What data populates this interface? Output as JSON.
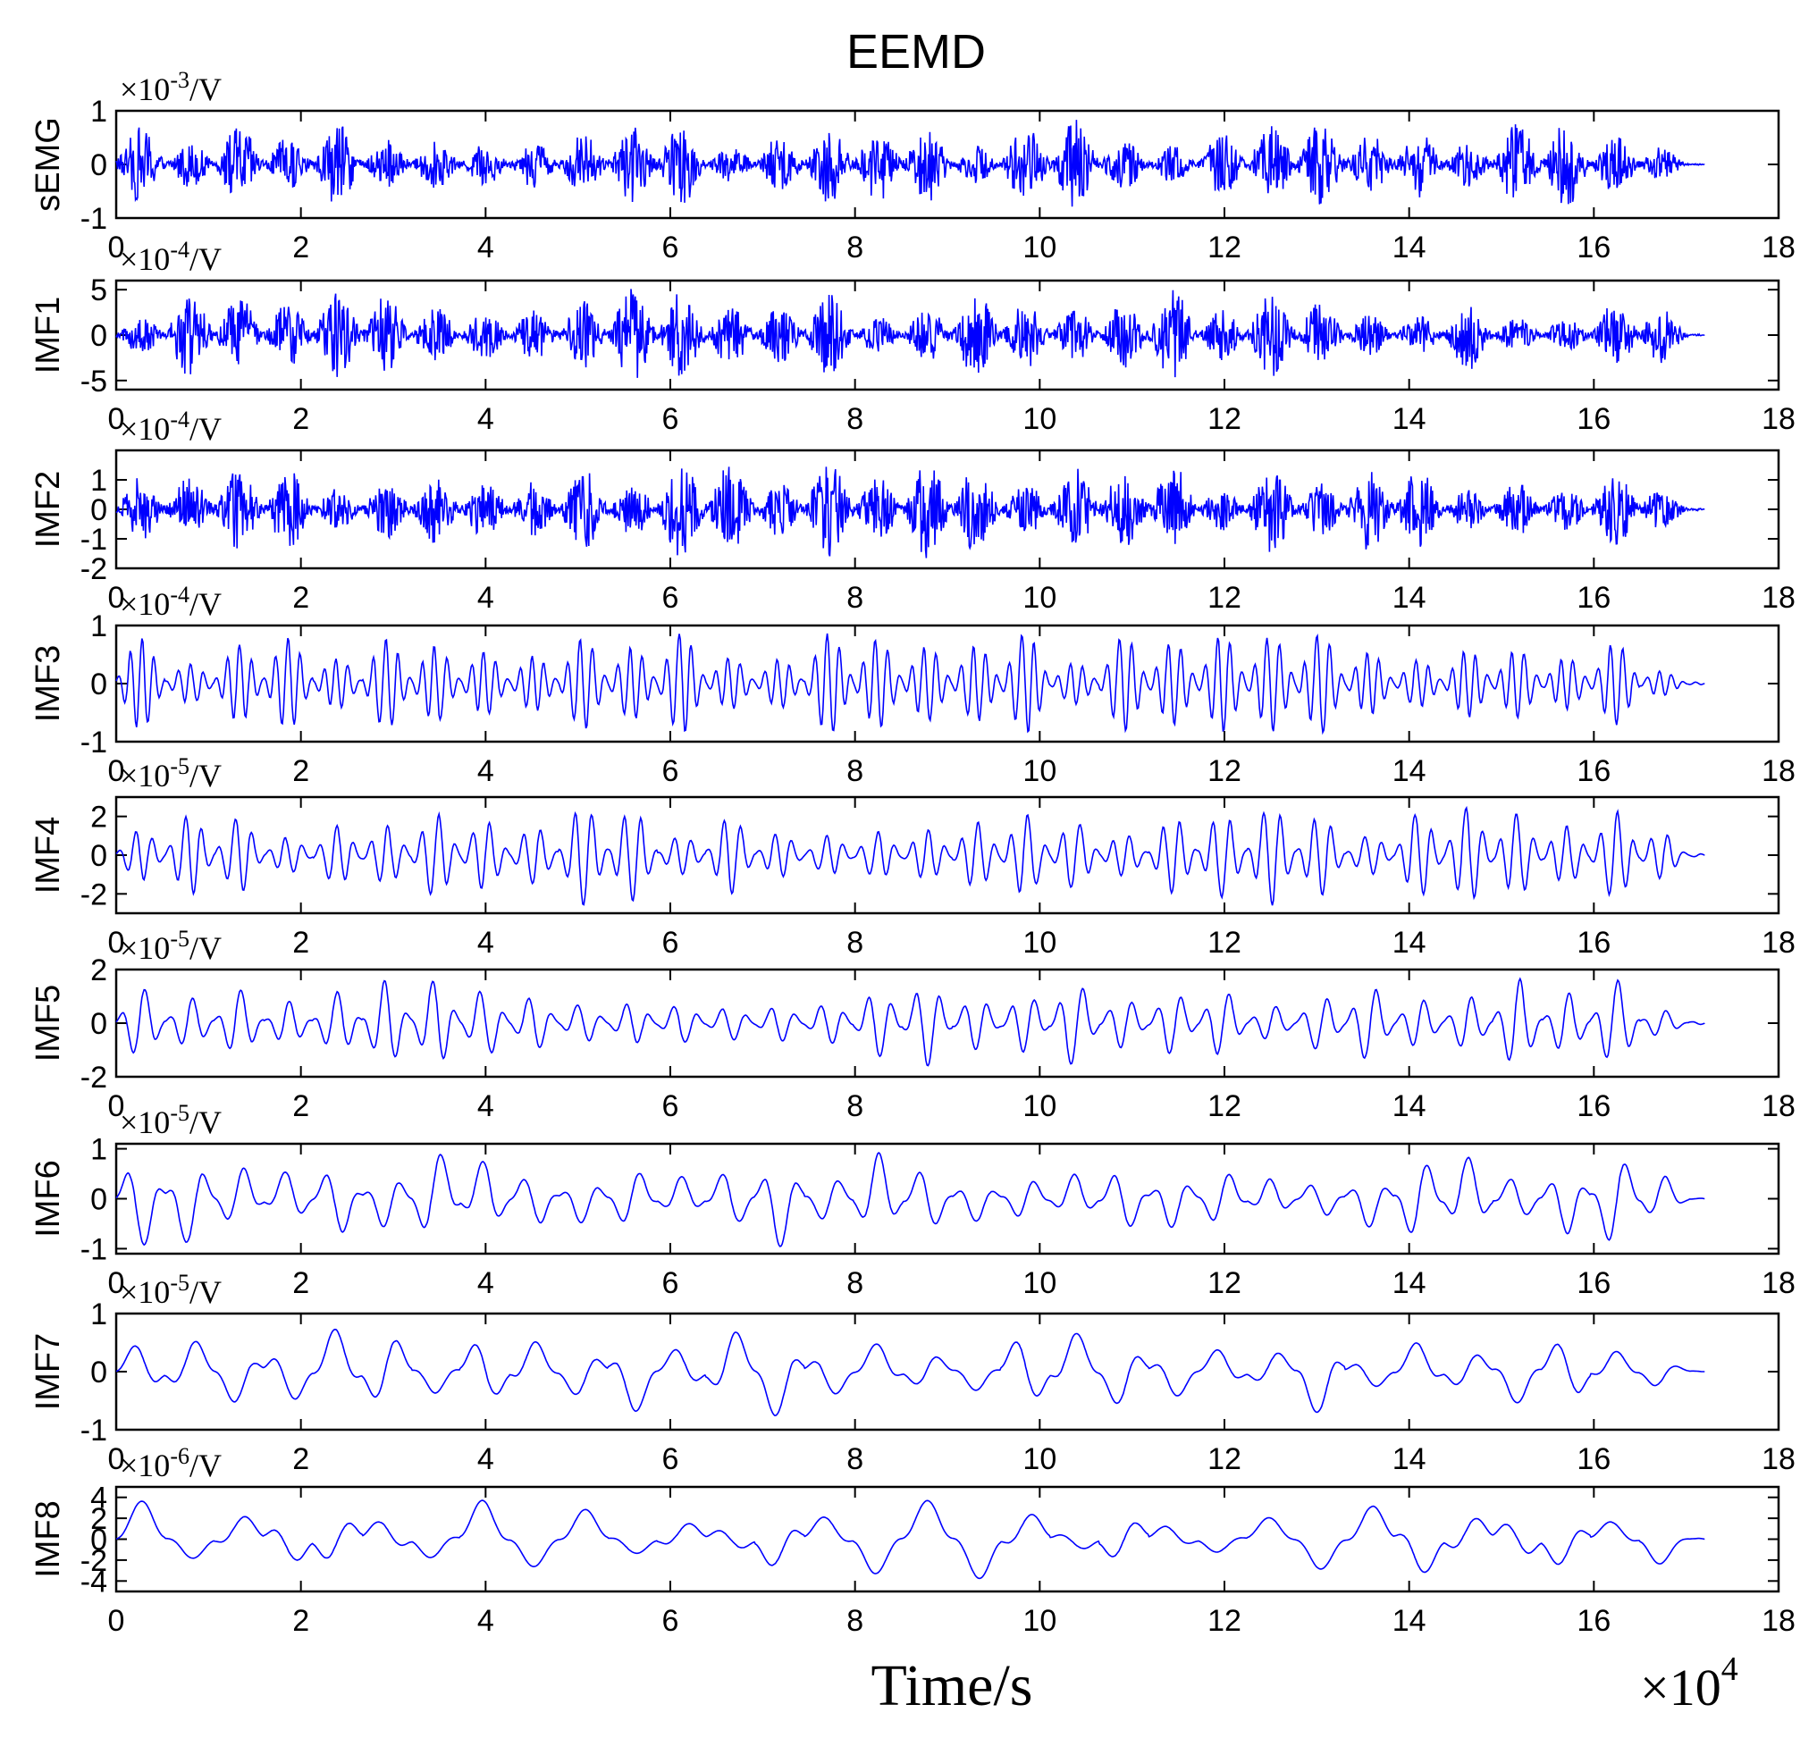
{
  "title": "EEMD",
  "xlabel": "Time/s",
  "x_multiplier_label": "×10",
  "x_multiplier_exp": "4",
  "x_ticks": [
    "0",
    "2",
    "4",
    "6",
    "8",
    "10",
    "12",
    "14",
    "16",
    "18"
  ],
  "colors": {
    "signal": "#0000ff",
    "axes": "#000000",
    "background": "#ffffff"
  },
  "chart_data": {
    "type": "line",
    "xlim": [
      0,
      18
    ],
    "x_scale": "×10^4",
    "signal_end_x": 17.2,
    "grid": false,
    "panels": [
      {
        "name": "sEMG",
        "unit_prefix": "×10",
        "unit_exp": "-3",
        "unit_suffix": "/V",
        "ylim": [
          -1,
          1
        ],
        "yticks": [
          -1,
          0,
          1
        ],
        "ytick_labels": [
          "-1",
          "0",
          "1"
        ]
      },
      {
        "name": "IMF1",
        "unit_prefix": "×10",
        "unit_exp": "-4",
        "unit_suffix": "/V",
        "ylim": [
          -6,
          6
        ],
        "yticks": [
          -5,
          0,
          5
        ],
        "ytick_labels": [
          "-5",
          "0",
          "5"
        ]
      },
      {
        "name": "IMF2",
        "unit_prefix": "×10",
        "unit_exp": "-4",
        "unit_suffix": "/V",
        "ylim": [
          -2,
          2
        ],
        "yticks": [
          -2,
          -1,
          0,
          1
        ],
        "ytick_labels": [
          "-2",
          "-1",
          "0",
          "1"
        ]
      },
      {
        "name": "IMF3",
        "unit_prefix": "×10",
        "unit_exp": "-4",
        "unit_suffix": "/V",
        "ylim": [
          -1,
          1
        ],
        "yticks": [
          -1,
          0,
          1
        ],
        "ytick_labels": [
          "-1",
          "0",
          "1"
        ]
      },
      {
        "name": "IMF4",
        "unit_prefix": "×10",
        "unit_exp": "-5",
        "unit_suffix": "/V",
        "ylim": [
          -3,
          3
        ],
        "yticks": [
          -2,
          0,
          2
        ],
        "ytick_labels": [
          "-2",
          "0",
          "2"
        ]
      },
      {
        "name": "IMF5",
        "unit_prefix": "×10",
        "unit_exp": "-5",
        "unit_suffix": "/V",
        "ylim": [
          -2,
          2
        ],
        "yticks": [
          -2,
          0,
          2
        ],
        "ytick_labels": [
          "-2",
          "0",
          "2"
        ]
      },
      {
        "name": "IMF6",
        "unit_prefix": "×10",
        "unit_exp": "-5",
        "unit_suffix": "/V",
        "ylim": [
          -1.1,
          1.1
        ],
        "yticks": [
          -1,
          0,
          1
        ],
        "ytick_labels": [
          "-1",
          "0",
          "1"
        ]
      },
      {
        "name": "IMF7",
        "unit_prefix": "×10",
        "unit_exp": "-5",
        "unit_suffix": "/V",
        "ylim": [
          -1,
          1
        ],
        "yticks": [
          -1,
          0,
          1
        ],
        "ytick_labels": [
          "-1",
          "0",
          "1"
        ]
      },
      {
        "name": "IMF8",
        "unit_prefix": "×10",
        "unit_exp": "-6",
        "unit_suffix": "/V",
        "ylim": [
          -5,
          5
        ],
        "yticks": [
          -4,
          -2,
          0,
          2,
          4
        ],
        "ytick_labels": [
          "-4",
          "-2",
          "0",
          "2",
          "4"
        ]
      }
    ]
  }
}
